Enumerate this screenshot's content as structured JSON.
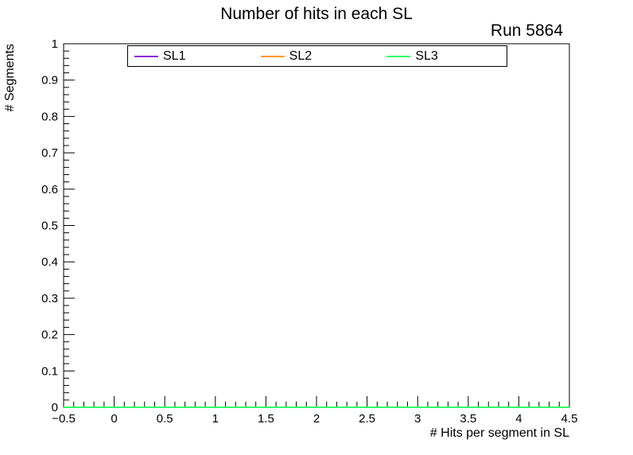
{
  "chart_data": {
    "type": "line",
    "title": "Number of hits in each SL",
    "annotation": "Run 5864",
    "xlabel": "# Hits per segment in SL",
    "ylabel": "# Segments",
    "xlim": [
      -0.5,
      4.5
    ],
    "ylim": [
      0,
      1
    ],
    "grid": false,
    "legend_position": "top",
    "frame_color": "#000000",
    "background_color": "#ffffff",
    "x_ticks": {
      "values": [
        -0.5,
        0,
        0.5,
        1,
        1.5,
        2,
        2.5,
        3,
        3.5,
        4,
        4.5
      ],
      "labels": [
        "−0.5",
        "0",
        "0.5",
        "1",
        "1.5",
        "2",
        "2.5",
        "3",
        "3.5",
        "4",
        "4.5"
      ],
      "minor_step": 0.1
    },
    "y_ticks": {
      "values": [
        0,
        0.1,
        0.2,
        0.3,
        0.4,
        0.5,
        0.6,
        0.7,
        0.8,
        0.9,
        1
      ],
      "labels": [
        "0",
        "0.1",
        "0.2",
        "0.3",
        "0.4",
        "0.5",
        "0.6",
        "0.7",
        "0.8",
        "0.9",
        "1"
      ],
      "minor_step": 0.02
    },
    "series": [
      {
        "name": "SL1",
        "color": "#8a2be2",
        "x": [
          0,
          1,
          2,
          3,
          4
        ],
        "values": [
          0,
          0,
          0,
          0,
          0
        ]
      },
      {
        "name": "SL2",
        "color": "#ff9933",
        "x": [
          0,
          1,
          2,
          3,
          4
        ],
        "values": [
          0,
          0,
          0,
          0,
          0
        ]
      },
      {
        "name": "SL3",
        "color": "#33ff66",
        "x": [
          0,
          1,
          2,
          3,
          4
        ],
        "values": [
          0,
          0,
          0,
          0,
          0
        ]
      }
    ]
  }
}
